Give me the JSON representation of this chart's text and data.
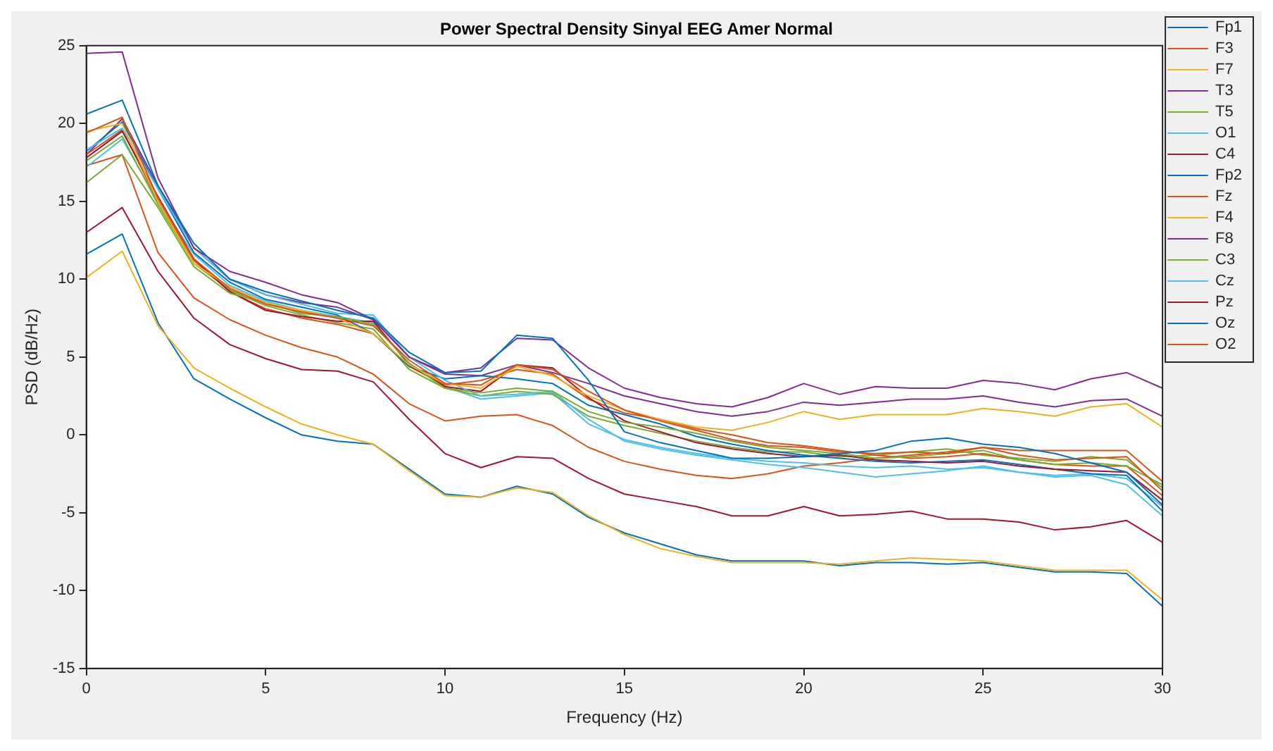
{
  "chart_data": {
    "type": "line",
    "title": "Power Spectral Density Sinyal EEG Amer Normal",
    "xlabel": "Frequency (Hz)",
    "ylabel": "PSD (dB/Hz)",
    "x": [
      0,
      1,
      2,
      3,
      4,
      5,
      6,
      7,
      8,
      9,
      10,
      11,
      12,
      13,
      14,
      15,
      16,
      17,
      18,
      19,
      20,
      21,
      22,
      23,
      24,
      25,
      26,
      27,
      28,
      29,
      30
    ],
    "xlim": [
      0,
      30
    ],
    "xticks": [
      0,
      5,
      10,
      15,
      20,
      25,
      30
    ],
    "ylim": [
      -15,
      25
    ],
    "yticks": [
      -15,
      -10,
      -5,
      0,
      5,
      10,
      15,
      20,
      25
    ],
    "grid": false,
    "legend": "top right",
    "marker": "none",
    "line_style": "solid",
    "series": [
      {
        "name": "Fp1",
        "color": "#0072bd",
        "values": [
          20.6,
          21.5,
          16,
          12.3,
          10,
          9.2,
          8.6,
          8,
          7.5,
          5.3,
          4,
          4.1,
          6.4,
          6.2,
          3.5,
          0.2,
          -0.5,
          -1,
          -1.5,
          -1.5,
          -1.4,
          -1.2,
          -1,
          -0.4,
          -0.2,
          -0.6,
          -0.8,
          -1.2,
          -1.8,
          -2.4,
          -4.5
        ]
      },
      {
        "name": "F3",
        "color": "#d95319",
        "values": [
          19.4,
          20.4,
          15.2,
          11.3,
          9.4,
          8.4,
          7.9,
          7.5,
          7,
          4.8,
          3.3,
          3.2,
          4.5,
          4.2,
          2.8,
          1.6,
          0.9,
          0.3,
          -0.3,
          -0.7,
          -0.8,
          -1.1,
          -1.2,
          -1.1,
          -1.2,
          -0.8,
          -1.3,
          -1.6,
          -1.5,
          -1.4,
          -3.6
        ]
      },
      {
        "name": "F7",
        "color": "#edb120",
        "values": [
          19.5,
          20,
          15,
          11,
          9.5,
          8.5,
          8,
          7.5,
          6.5,
          4.5,
          3.3,
          3,
          4.4,
          3.8,
          2.5,
          1.6,
          1,
          0.5,
          0.3,
          0.8,
          1.5,
          1,
          1.3,
          1.3,
          1.3,
          1.7,
          1.5,
          1.2,
          1.8,
          2,
          0.5
        ]
      },
      {
        "name": "T3",
        "color": "#7e2f8e",
        "values": [
          24.5,
          24.6,
          16.5,
          12,
          10.5,
          9.8,
          9,
          8.5,
          7.4,
          5,
          4,
          4.3,
          6.2,
          6.1,
          4.3,
          3,
          2.4,
          2,
          1.8,
          2.4,
          3.3,
          2.6,
          3.1,
          3,
          3,
          3.5,
          3.3,
          2.9,
          3.6,
          4,
          3
        ]
      },
      {
        "name": "T5",
        "color": "#77ac30",
        "values": [
          16.2,
          18,
          14.6,
          10.8,
          9.1,
          8.5,
          7.8,
          7.6,
          7.1,
          4.6,
          3,
          2.7,
          3,
          2.8,
          1.5,
          0.8,
          0.5,
          0.1,
          -0.4,
          -0.8,
          -1,
          -1.2,
          -1.5,
          -1.4,
          -1.2,
          -1,
          -1.6,
          -1.9,
          -1.8,
          -2,
          -3.2
        ]
      },
      {
        "name": "O1",
        "color": "#4dbeee",
        "values": [
          18.3,
          19.7,
          15.8,
          12,
          10,
          9,
          8.4,
          7.8,
          7.7,
          5,
          3.5,
          2.5,
          2.6,
          2.8,
          1,
          -0.4,
          -0.9,
          -1.3,
          -1.6,
          -1.9,
          -2.1,
          -2.4,
          -2.7,
          -2.5,
          -2.3,
          -2,
          -2.4,
          -2.7,
          -2.6,
          -3.2,
          -5.2
        ]
      },
      {
        "name": "C4",
        "color": "#a2142f",
        "values": [
          17.8,
          19.5,
          15.3,
          11.3,
          9.2,
          8,
          7.6,
          7.3,
          7.3,
          4.5,
          3.1,
          2.8,
          4.5,
          4.3,
          2.4,
          0.9,
          0.2,
          -0.5,
          -0.9,
          -1.2,
          -1.4,
          -1.3,
          -1.6,
          -1.7,
          -1.8,
          -1.7,
          -2,
          -2.2,
          -2.3,
          -2.4,
          -4.2
        ]
      },
      {
        "name": "Fp2",
        "color": "#0072bd",
        "values": [
          18.2,
          20.1,
          15.8,
          11.7,
          9.8,
          8.7,
          8.2,
          7.7,
          6.5,
          4.4,
          3.6,
          3.8,
          3.6,
          3.3,
          1.9,
          1.3,
          0.7,
          -0.1,
          -0.6,
          -1,
          -1.3,
          -1.5,
          -1.7,
          -1.8,
          -1.7,
          -1.6,
          -1.9,
          -2.2,
          -2.5,
          -2.6,
          -4.9
        ]
      },
      {
        "name": "Fz",
        "color": "#d95319",
        "values": [
          18,
          19.6,
          15,
          11.2,
          9.2,
          8.1,
          7.5,
          7.1,
          6.5,
          4.4,
          3.2,
          3.5,
          4.2,
          3.9,
          2.3,
          1.4,
          1,
          0.4,
          0,
          -0.5,
          -0.7,
          -1,
          -1.3,
          -1.5,
          -1.4,
          -1.2,
          -1.6,
          -1.9,
          -2,
          -2,
          -3.9
        ]
      },
      {
        "name": "F4",
        "color": "#edb120",
        "values": [
          10.1,
          11.8,
          7,
          4.3,
          3,
          1.8,
          0.7,
          0,
          -0.6,
          -2.3,
          -3.9,
          -4,
          -3.4,
          -3.7,
          -5.2,
          -6.4,
          -7.3,
          -7.8,
          -8.2,
          -8.2,
          -8.2,
          -8.3,
          -8.1,
          -7.9,
          -8,
          -8.1,
          -8.4,
          -8.7,
          -8.7,
          -8.7,
          -10.6
        ]
      },
      {
        "name": "F8",
        "color": "#7e2f8e",
        "values": [
          18,
          20.3,
          16,
          12,
          10,
          9,
          8.5,
          8.2,
          7.4,
          5,
          3.9,
          3.8,
          4.5,
          4,
          3.3,
          2.5,
          2,
          1.5,
          1.2,
          1.5,
          2.1,
          1.9,
          2.1,
          2.3,
          2.3,
          2.5,
          2.1,
          1.8,
          2.2,
          2.3,
          1.2
        ]
      },
      {
        "name": "C3",
        "color": "#77ac30",
        "values": [
          17.6,
          19.2,
          14.8,
          11,
          9.3,
          8.3,
          7.7,
          7.2,
          6.8,
          4.2,
          3,
          2.5,
          2.8,
          2.6,
          1.2,
          0.6,
          0.1,
          -0.4,
          -0.8,
          -1.1,
          -1.1,
          -1.4,
          -1.3,
          -1.1,
          -0.9,
          -1.3,
          -1.5,
          -1.7,
          -1.4,
          -1.6,
          -3.4
        ]
      },
      {
        "name": "Cz",
        "color": "#4dbeee",
        "values": [
          17.2,
          19,
          15,
          11.6,
          9.6,
          8.6,
          8,
          7.6,
          7.2,
          4.6,
          3.1,
          2.3,
          2.5,
          2.7,
          0.7,
          -0.3,
          -0.8,
          -1.2,
          -1.5,
          -1.7,
          -1.8,
          -2,
          -2.1,
          -2,
          -2.2,
          -2.1,
          -2.4,
          -2.6,
          -2.5,
          -2.8,
          -4.6
        ]
      },
      {
        "name": "Pz",
        "color": "#a2142f",
        "values": [
          13,
          14.6,
          10.5,
          7.5,
          5.8,
          4.9,
          4.2,
          4.1,
          3.4,
          1,
          -1.2,
          -2.1,
          -1.4,
          -1.5,
          -2.8,
          -3.8,
          -4.2,
          -4.6,
          -5.2,
          -5.2,
          -4.6,
          -5.2,
          -5.1,
          -4.9,
          -5.4,
          -5.4,
          -5.6,
          -6.1,
          -5.9,
          -5.5,
          -6.9
        ]
      },
      {
        "name": "Oz",
        "color": "#0072bd",
        "values": [
          11.6,
          12.9,
          7.2,
          3.6,
          2.3,
          1.1,
          0,
          -0.4,
          -0.6,
          -2.2,
          -3.8,
          -4,
          -3.3,
          -3.8,
          -5.3,
          -6.3,
          -7,
          -7.7,
          -8.1,
          -8.1,
          -8.1,
          -8.4,
          -8.2,
          -8.2,
          -8.3,
          -8.2,
          -8.5,
          -8.8,
          -8.8,
          -8.9,
          -11
        ]
      },
      {
        "name": "O2",
        "color": "#d95319",
        "values": [
          17.3,
          18,
          11.7,
          8.8,
          7.4,
          6.4,
          5.6,
          5,
          3.9,
          2,
          0.9,
          1.2,
          1.3,
          0.6,
          -0.8,
          -1.7,
          -2.2,
          -2.6,
          -2.8,
          -2.5,
          -2,
          -1.8,
          -1.5,
          -1.3,
          -1.1,
          -0.8,
          -1,
          -1,
          -1,
          -1,
          -3
        ]
      }
    ]
  }
}
